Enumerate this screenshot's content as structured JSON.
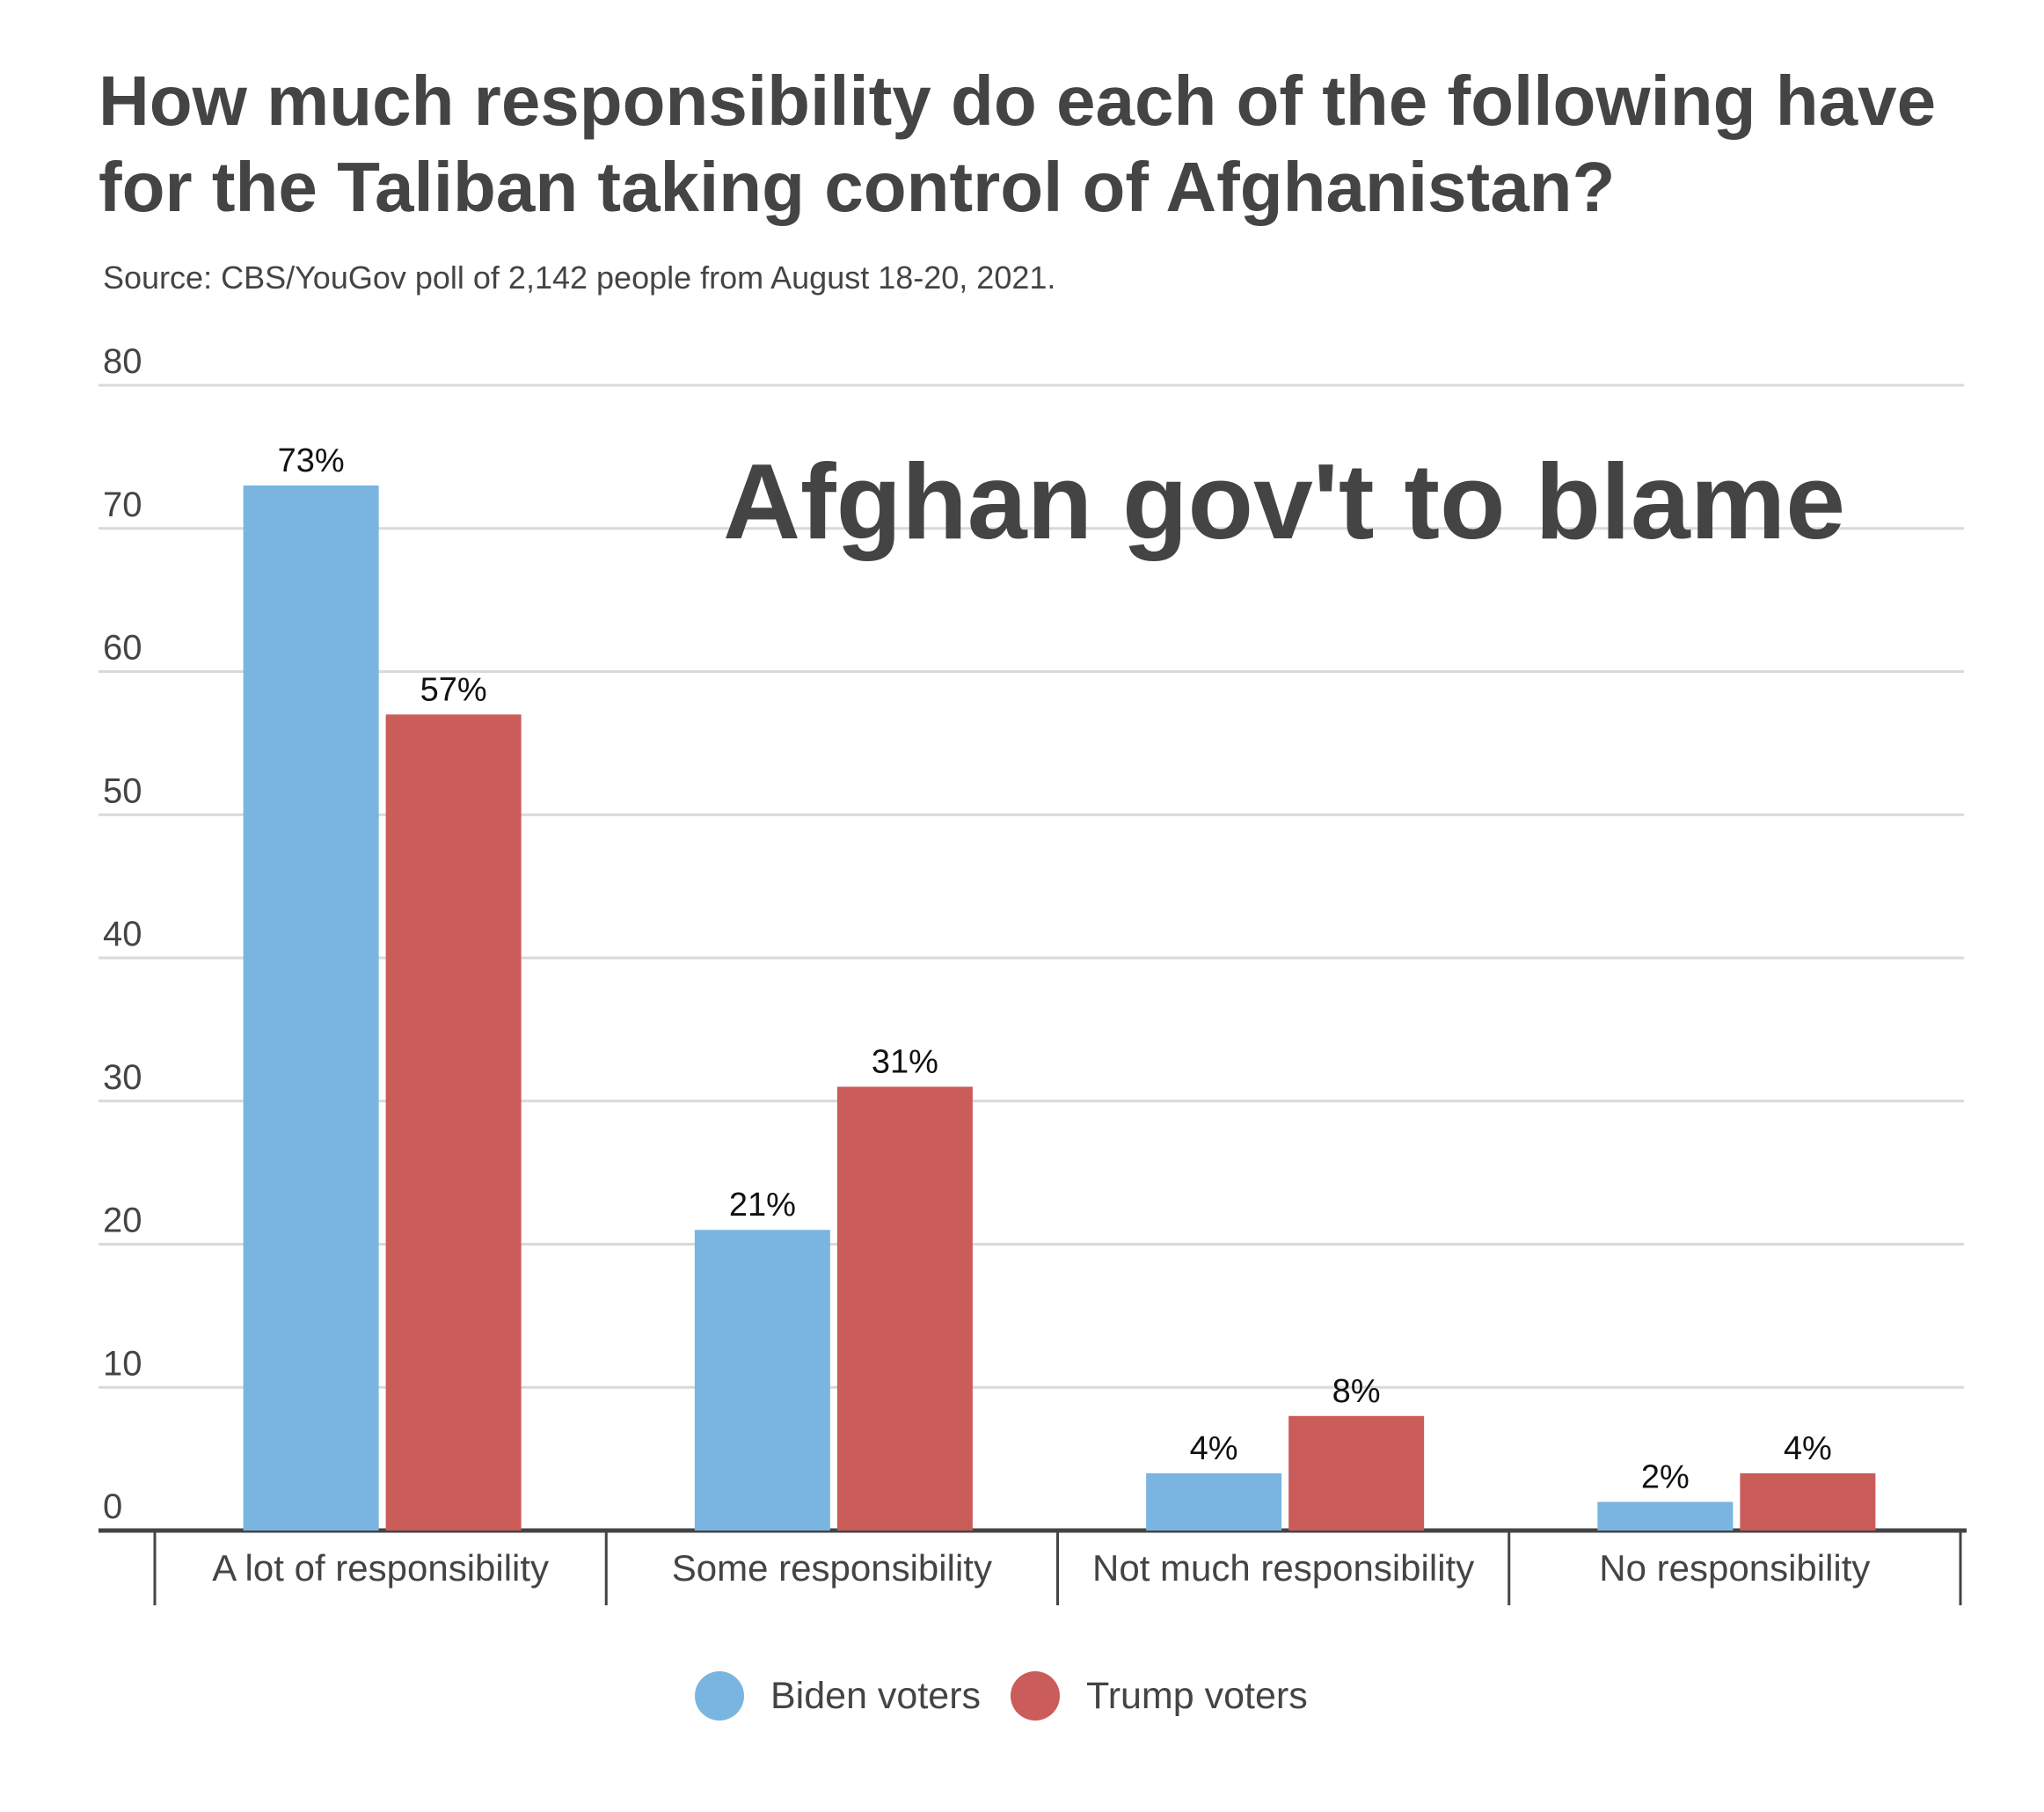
{
  "colors": {
    "biden": "#79b5e0",
    "trump": "#ca5c5a",
    "grid": "#d9d9d9",
    "axis": "#444444",
    "text": "#444444",
    "label": "#111111"
  },
  "chart_data": {
    "type": "bar",
    "title": "How much responsibility do each of the following have for the Taliban taking control of Afghanistan?",
    "subtitle": "Source: CBS/YouGov poll of 2,142 people from August 18-20, 2021.",
    "annotation": "Afghan gov't to blame",
    "categories": [
      "A lot of responsibility",
      "Some responsibility",
      "Not much responsibility",
      "No responsibility"
    ],
    "series": [
      {
        "name": "Biden voters",
        "values": [
          73,
          21,
          4,
          2
        ],
        "labels": [
          "73%",
          "21%",
          "4%",
          "2%"
        ]
      },
      {
        "name": "Trump voters",
        "values": [
          57,
          31,
          8,
          4
        ],
        "labels": [
          "57%",
          "31%",
          "8%",
          "4%"
        ]
      }
    ],
    "ylim": [
      0,
      80
    ],
    "yticks": [
      0,
      10,
      20,
      30,
      40,
      50,
      60,
      70,
      80
    ],
    "xlabel": "",
    "ylabel": "",
    "grid": true,
    "legend_position": "bottom-center"
  }
}
